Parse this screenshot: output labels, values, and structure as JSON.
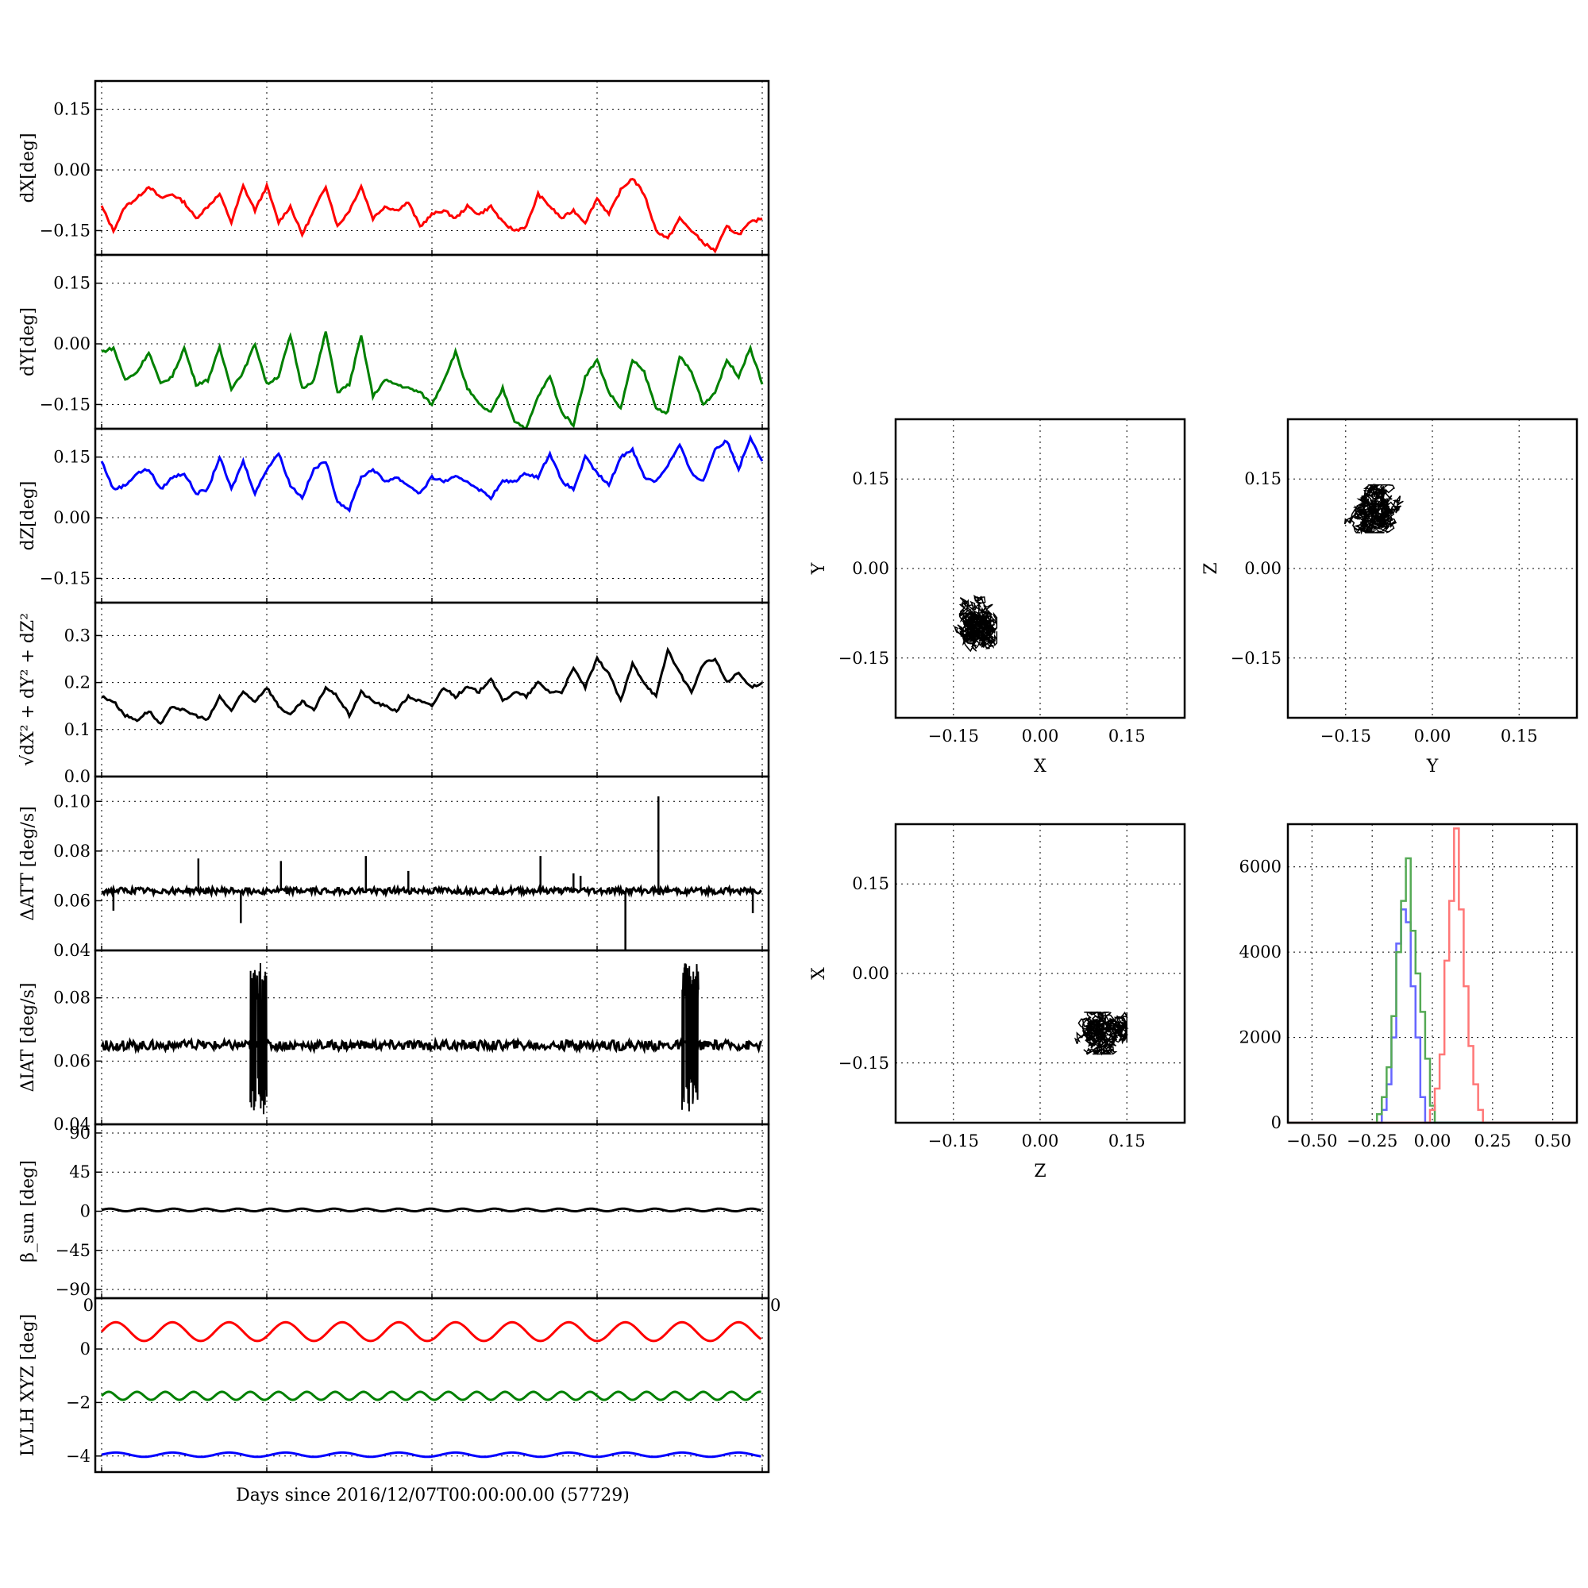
{
  "figure": {
    "xlabel": "Days since 2016/12/07T00:00:00.00 (57729)",
    "series_colors": {
      "red": "#ff0000",
      "green": "#008000",
      "blue": "#0000ff",
      "black": "#000000"
    }
  },
  "chart_data": [
    {
      "id": "dX",
      "type": "line",
      "ylabel": "dX[deg]",
      "color": "#ff0000",
      "ylim": [
        -0.21,
        0.22
      ],
      "yticks": [
        -0.15,
        0.0,
        0.15
      ],
      "ytick_labels": [
        "−0.15",
        "0.00",
        "0.15"
      ],
      "xlim": [
        0,
        28
      ],
      "x": [
        0,
        0.5,
        1,
        1.5,
        2,
        2.5,
        3,
        3.5,
        4,
        4.5,
        5,
        5.5,
        6,
        6.5,
        7,
        7.5,
        8,
        8.5,
        9,
        9.5,
        10,
        10.5,
        11,
        11.5,
        12,
        12.5,
        13,
        13.5,
        14,
        14.5,
        15,
        15.5,
        16,
        16.5,
        17,
        17.5,
        18,
        18.5,
        19,
        19.5,
        20,
        20.5,
        21,
        21.5,
        22,
        22.5,
        23,
        23.5,
        24,
        24.5,
        25,
        25.5,
        26,
        26.5,
        27,
        27.5,
        28
      ],
      "y": [
        -0.09,
        -0.15,
        -0.09,
        -0.07,
        -0.04,
        -0.07,
        -0.06,
        -0.08,
        -0.12,
        -0.09,
        -0.06,
        -0.13,
        -0.04,
        -0.1,
        -0.04,
        -0.13,
        -0.09,
        -0.16,
        -0.1,
        -0.04,
        -0.14,
        -0.1,
        -0.04,
        -0.12,
        -0.09,
        -0.1,
        -0.08,
        -0.14,
        -0.11,
        -0.1,
        -0.12,
        -0.09,
        -0.11,
        -0.09,
        -0.13,
        -0.15,
        -0.14,
        -0.06,
        -0.09,
        -0.12,
        -0.1,
        -0.13,
        -0.07,
        -0.11,
        -0.05,
        -0.02,
        -0.06,
        -0.15,
        -0.17,
        -0.12,
        -0.15,
        -0.18,
        -0.2,
        -0.14,
        -0.16,
        -0.13,
        -0.12
      ]
    },
    {
      "id": "dY",
      "type": "line",
      "ylabel": "dY[deg]",
      "color": "#008000",
      "ylim": [
        -0.21,
        0.22
      ],
      "yticks": [
        -0.15,
        0.0,
        0.15
      ],
      "ytick_labels": [
        "−0.15",
        "0.00",
        "0.15"
      ],
      "xlim": [
        0,
        28
      ],
      "x": [
        0,
        0.5,
        1,
        1.5,
        2,
        2.5,
        3,
        3.5,
        4,
        4.5,
        5,
        5.5,
        6,
        6.5,
        7,
        7.5,
        8,
        8.5,
        9,
        9.5,
        10,
        10.5,
        11,
        11.5,
        12,
        12.5,
        13,
        13.5,
        14,
        14.5,
        15,
        15.5,
        16,
        16.5,
        17,
        17.5,
        18,
        18.5,
        19,
        19.5,
        20,
        20.5,
        21,
        21.5,
        22,
        22.5,
        23,
        23.5,
        24,
        24.5,
        25,
        25.5,
        26,
        26.5,
        27,
        27.5,
        28
      ],
      "y": [
        -0.02,
        -0.01,
        -0.09,
        -0.07,
        -0.02,
        -0.1,
        -0.08,
        -0.01,
        -0.1,
        -0.09,
        -0.01,
        -0.11,
        -0.07,
        0.0,
        -0.1,
        -0.08,
        0.02,
        -0.11,
        -0.09,
        0.03,
        -0.12,
        -0.1,
        0.02,
        -0.13,
        -0.09,
        -0.1,
        -0.11,
        -0.12,
        -0.15,
        -0.09,
        -0.02,
        -0.11,
        -0.15,
        -0.17,
        -0.11,
        -0.19,
        -0.21,
        -0.13,
        -0.08,
        -0.17,
        -0.2,
        -0.08,
        -0.04,
        -0.12,
        -0.16,
        -0.04,
        -0.07,
        -0.16,
        -0.17,
        -0.03,
        -0.07,
        -0.15,
        -0.12,
        -0.04,
        -0.08,
        -0.01,
        -0.1
      ]
    },
    {
      "id": "dZ",
      "type": "line",
      "ylabel": "dZ[deg]",
      "color": "#0000ff",
      "ylim": [
        -0.21,
        0.22
      ],
      "yticks": [
        -0.15,
        0.0,
        0.15
      ],
      "ytick_labels": [
        "−0.15",
        "0.00",
        "0.15"
      ],
      "xlim": [
        0,
        28
      ],
      "x": [
        0,
        0.5,
        1,
        1.5,
        2,
        2.5,
        3,
        3.5,
        4,
        4.5,
        5,
        5.5,
        6,
        6.5,
        7,
        7.5,
        8,
        8.5,
        9,
        9.5,
        10,
        10.5,
        11,
        11.5,
        12,
        12.5,
        13,
        13.5,
        14,
        14.5,
        15,
        15.5,
        16,
        16.5,
        17,
        17.5,
        18,
        18.5,
        19,
        19.5,
        20,
        20.5,
        21,
        21.5,
        22,
        22.5,
        23,
        23.5,
        24,
        24.5,
        25,
        25.5,
        26,
        26.5,
        27,
        27.5,
        28
      ],
      "y": [
        0.14,
        0.07,
        0.08,
        0.11,
        0.12,
        0.07,
        0.1,
        0.11,
        0.06,
        0.07,
        0.15,
        0.07,
        0.14,
        0.06,
        0.12,
        0.16,
        0.08,
        0.05,
        0.12,
        0.14,
        0.04,
        0.02,
        0.1,
        0.12,
        0.09,
        0.1,
        0.08,
        0.06,
        0.1,
        0.09,
        0.1,
        0.09,
        0.07,
        0.05,
        0.09,
        0.09,
        0.11,
        0.1,
        0.16,
        0.09,
        0.07,
        0.15,
        0.11,
        0.08,
        0.15,
        0.17,
        0.1,
        0.09,
        0.13,
        0.18,
        0.11,
        0.09,
        0.17,
        0.19,
        0.12,
        0.2,
        0.14
      ]
    },
    {
      "id": "norm",
      "type": "line",
      "ylabel": "√dX² + dY² + dZ²",
      "color": "#000000",
      "ylim": [
        0.0,
        0.37
      ],
      "yticks": [
        0.0,
        0.1,
        0.2,
        0.3
      ],
      "ytick_labels": [
        "0.0",
        "0.1",
        "0.2",
        "0.3"
      ],
      "xlim": [
        0,
        28
      ],
      "x": [
        0,
        0.5,
        1,
        1.5,
        2,
        2.5,
        3,
        3.5,
        4,
        4.5,
        5,
        5.5,
        6,
        6.5,
        7,
        7.5,
        8,
        8.5,
        9,
        9.5,
        10,
        10.5,
        11,
        11.5,
        12,
        12.5,
        13,
        13.5,
        14,
        14.5,
        15,
        15.5,
        16,
        16.5,
        17,
        17.5,
        18,
        18.5,
        19,
        19.5,
        20,
        20.5,
        21,
        21.5,
        22,
        22.5,
        23,
        23.5,
        24,
        24.5,
        25,
        25.5,
        26,
        26.5,
        27,
        27.5,
        28
      ],
      "y": [
        0.17,
        0.16,
        0.13,
        0.12,
        0.14,
        0.11,
        0.15,
        0.14,
        0.13,
        0.12,
        0.17,
        0.14,
        0.18,
        0.16,
        0.19,
        0.15,
        0.13,
        0.16,
        0.14,
        0.19,
        0.17,
        0.13,
        0.18,
        0.16,
        0.15,
        0.14,
        0.17,
        0.16,
        0.15,
        0.19,
        0.17,
        0.19,
        0.18,
        0.21,
        0.16,
        0.18,
        0.17,
        0.2,
        0.18,
        0.18,
        0.23,
        0.19,
        0.25,
        0.22,
        0.16,
        0.24,
        0.2,
        0.17,
        0.27,
        0.22,
        0.18,
        0.24,
        0.25,
        0.2,
        0.22,
        0.19,
        0.2
      ]
    },
    {
      "id": "dATT",
      "type": "line",
      "ylabel": "ΔATT [deg/s]",
      "color": "#000000",
      "ylim": [
        0.04,
        0.11
      ],
      "yticks": [
        0.04,
        0.06,
        0.08,
        0.1
      ],
      "ytick_labels": [
        "0.04",
        "0.06",
        "0.08",
        "0.10"
      ],
      "xlim": [
        0,
        28
      ],
      "baseline": 0.064,
      "spikes": [
        {
          "x": 0.5,
          "y": 0.056
        },
        {
          "x": 4.1,
          "y": 0.077
        },
        {
          "x": 5.9,
          "y": 0.051
        },
        {
          "x": 7.6,
          "y": 0.076
        },
        {
          "x": 11.2,
          "y": 0.078
        },
        {
          "x": 13.0,
          "y": 0.072
        },
        {
          "x": 18.6,
          "y": 0.078
        },
        {
          "x": 20.0,
          "y": 0.071
        },
        {
          "x": 20.3,
          "y": 0.07
        },
        {
          "x": 22.2,
          "y": 0.04
        },
        {
          "x": 23.6,
          "y": 0.102
        },
        {
          "x": 27.6,
          "y": 0.055
        }
      ]
    },
    {
      "id": "dIAT",
      "type": "line",
      "ylabel": "ΔIAT [deg/s]",
      "color": "#000000",
      "ylim": [
        0.04,
        0.095
      ],
      "yticks": [
        0.04,
        0.06,
        0.08
      ],
      "ytick_labels": [
        "0.04",
        "0.06",
        "0.08"
      ],
      "xlim": [
        0,
        28
      ],
      "baseline": 0.065,
      "bursts": [
        {
          "x_start": 6.3,
          "x_end": 7.0,
          "ymin": 0.043,
          "ymax": 0.091
        },
        {
          "x_start": 24.6,
          "x_end": 25.3,
          "ymin": 0.044,
          "ymax": 0.091
        }
      ]
    },
    {
      "id": "beta_sun",
      "type": "line",
      "ylabel": "β_sun [deg]",
      "color": "#000000",
      "ylim": [
        -100,
        100
      ],
      "yticks": [
        -90,
        -45,
        0,
        45,
        90
      ],
      "ytick_labels": [
        "−90",
        "−45",
        "0",
        "45",
        "90"
      ],
      "xlim": [
        0,
        28
      ],
      "mean": 1.5,
      "amplitude": 1.5,
      "period_days": 1.36
    },
    {
      "id": "lvlh",
      "type": "line",
      "ylabel": "LVLH XYZ [deg]",
      "ylim": [
        -4.6,
        1.9
      ],
      "yticks": [
        -4,
        -2,
        0
      ],
      "ytick_labels": [
        "−4",
        "−2",
        "0"
      ],
      "xlim": [
        0,
        28
      ],
      "corner_labels": [
        "0",
        "0"
      ],
      "series": [
        {
          "color": "#ff0000",
          "mean": 0.65,
          "amplitude": 0.35,
          "period_days": 2.4
        },
        {
          "color": "#008000",
          "mean": -1.75,
          "amplitude": 0.15,
          "period_days": 1.2
        },
        {
          "color": "#0000ff",
          "mean": -3.95,
          "amplitude": 0.08,
          "period_days": 2.4
        }
      ]
    },
    {
      "id": "scatter_xy",
      "type": "scatter",
      "xlabel": "X",
      "ylabel": "Y",
      "xlim": [
        -0.25,
        0.25
      ],
      "ylim": [
        -0.25,
        0.25
      ],
      "ticks": [
        -0.15,
        0.0,
        0.15
      ],
      "tick_labels": [
        "−0.15",
        "0.00",
        "0.15"
      ],
      "center": [
        -0.12,
        -0.09
      ],
      "spread": [
        0.045,
        0.065
      ],
      "color": "#000000"
    },
    {
      "id": "scatter_yz",
      "type": "scatter",
      "xlabel": "Y",
      "ylabel": "Z",
      "xlim": [
        -0.25,
        0.25
      ],
      "ylim": [
        -0.25,
        0.25
      ],
      "ticks": [
        -0.15,
        0.0,
        0.15
      ],
      "tick_labels": [
        "−0.15",
        "0.00",
        "0.15"
      ],
      "center": [
        -0.1,
        0.1
      ],
      "spread": [
        0.07,
        0.04
      ],
      "color": "#000000"
    },
    {
      "id": "scatter_zx",
      "type": "scatter",
      "xlabel": "Z",
      "ylabel": "X",
      "xlim": [
        -0.25,
        0.25
      ],
      "ylim": [
        -0.25,
        0.25
      ],
      "ticks": [
        -0.15,
        0.0,
        0.15
      ],
      "tick_labels": [
        "−0.15",
        "0.00",
        "0.15"
      ],
      "center": [
        0.1,
        -0.1
      ],
      "spread": [
        0.05,
        0.035
      ],
      "color": "#000000"
    },
    {
      "id": "histogram",
      "type": "bar",
      "xlim": [
        -0.6,
        0.6
      ],
      "ylim": [
        0,
        7000
      ],
      "xticks": [
        -0.5,
        -0.25,
        0.0,
        0.25,
        0.5
      ],
      "xtick_labels": [
        "−0.50",
        "−0.25",
        "0.00",
        "0.25",
        "0.50"
      ],
      "yticks": [
        0,
        2000,
        4000,
        6000
      ],
      "ytick_labels": [
        "0",
        "2000",
        "4000",
        "6000"
      ],
      "series": [
        {
          "color": "#6666ff",
          "x": [
            -0.2,
            -0.18,
            -0.16,
            -0.14,
            -0.12,
            -0.1,
            -0.08,
            -0.06,
            -0.04
          ],
          "y": [
            300,
            900,
            2000,
            4200,
            5000,
            4700,
            3200,
            2000,
            600
          ]
        },
        {
          "color": "#55aa55",
          "x": [
            -0.22,
            -0.2,
            -0.18,
            -0.16,
            -0.14,
            -0.12,
            -0.1,
            -0.08,
            -0.06,
            -0.04,
            -0.02,
            0.0
          ],
          "y": [
            200,
            600,
            1300,
            2500,
            4000,
            5200,
            6200,
            4500,
            3500,
            2600,
            1500,
            400
          ]
        },
        {
          "color": "#ff7777",
          "x": [
            0.0,
            0.02,
            0.04,
            0.06,
            0.08,
            0.1,
            0.12,
            0.14,
            0.16,
            0.18,
            0.2,
            0.22
          ],
          "y": [
            300,
            800,
            1600,
            3800,
            5200,
            6900,
            5000,
            3200,
            1800,
            900,
            300,
            0
          ]
        }
      ]
    }
  ]
}
